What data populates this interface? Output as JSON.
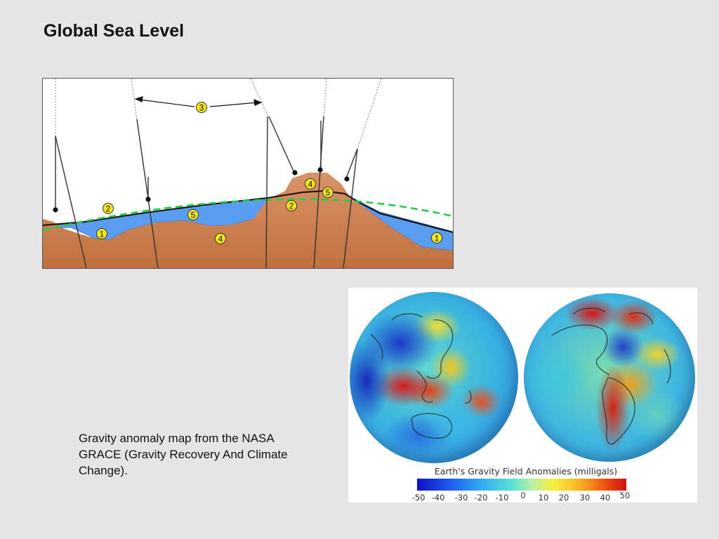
{
  "slide": {
    "title": "Global Sea Level",
    "caption": "Gravity anomaly map from the NASA GRACE (Gravity Recovery And Climate Change)."
  },
  "diagram": {
    "markers": [
      "1",
      "2",
      "3",
      "4",
      "5"
    ],
    "colors": {
      "land": "#cc8457",
      "ocean": "#5a9cf0",
      "geoid_dashed": "#22cc44",
      "marker_fill": "#f4e81c"
    }
  },
  "gravity_map": {
    "legend_title": "Earth's Gravity Field Anomalies (milligals)",
    "scale_ticks": [
      "-50",
      "-40",
      "-30",
      "-20",
      "-10",
      "0",
      "10",
      "20",
      "30",
      "40",
      "50"
    ],
    "scale_range": [
      -50,
      50
    ],
    "colors": {
      "low": "#1010c8",
      "mid": "#f8f040",
      "high": "#d01010"
    }
  }
}
